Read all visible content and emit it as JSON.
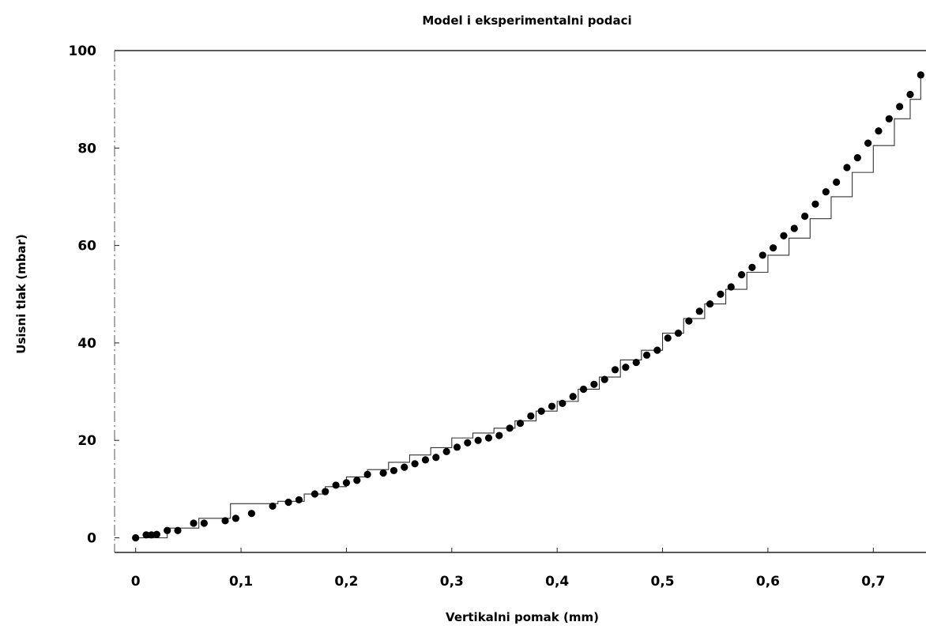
{
  "chart_data": {
    "type": "scatter",
    "title": "Model i eksperimentalni podaci",
    "xlabel": "Vertikalni pomak (mm)",
    "ylabel": "Usisni tlak (mbar)",
    "xlim": [
      -0.02,
      0.75
    ],
    "ylim": [
      -3,
      100
    ],
    "x_ticks": [
      {
        "value": 0,
        "label": "0"
      },
      {
        "value": 0.1,
        "label": "0,1"
      },
      {
        "value": 0.2,
        "label": "0,2"
      },
      {
        "value": 0.3,
        "label": "0,3"
      },
      {
        "value": 0.4,
        "label": "0,4"
      },
      {
        "value": 0.5,
        "label": "0,5"
      },
      {
        "value": 0.6,
        "label": "0,6"
      },
      {
        "value": 0.7,
        "label": "0,7"
      }
    ],
    "y_ticks": [
      {
        "value": 0,
        "label": "0"
      },
      {
        "value": 20,
        "label": "20"
      },
      {
        "value": 40,
        "label": "40"
      },
      {
        "value": 60,
        "label": "60"
      },
      {
        "value": 80,
        "label": "80"
      },
      {
        "value": 100,
        "label": "100"
      }
    ],
    "grid": false,
    "series": [
      {
        "marker": "circle",
        "x": [
          0.0,
          0.01,
          0.015,
          0.02,
          0.03,
          0.04,
          0.055,
          0.065,
          0.085,
          0.095,
          0.11,
          0.13,
          0.145,
          0.155,
          0.17,
          0.18,
          0.19,
          0.2,
          0.21,
          0.22,
          0.235,
          0.245,
          0.255,
          0.265,
          0.275,
          0.285,
          0.295,
          0.305,
          0.315,
          0.325,
          0.335,
          0.345,
          0.355,
          0.365,
          0.375,
          0.385,
          0.395,
          0.405,
          0.415,
          0.425,
          0.435,
          0.445,
          0.455,
          0.465,
          0.475,
          0.485,
          0.495,
          0.505,
          0.515,
          0.525,
          0.535,
          0.545,
          0.555,
          0.565,
          0.575,
          0.585,
          0.595,
          0.605,
          0.615,
          0.625,
          0.635,
          0.645,
          0.655,
          0.665,
          0.675,
          0.685,
          0.695,
          0.705,
          0.715,
          0.725,
          0.735,
          0.745
        ],
        "y": [
          0.0,
          0.6,
          0.6,
          0.7,
          1.5,
          1.5,
          3.0,
          3.0,
          3.5,
          4.0,
          5.0,
          6.5,
          7.3,
          7.8,
          9.0,
          9.5,
          10.8,
          11.3,
          11.8,
          13.0,
          13.3,
          13.8,
          14.5,
          15.2,
          16.0,
          16.5,
          17.7,
          18.6,
          19.5,
          20.0,
          20.5,
          21.0,
          22.5,
          23.5,
          25.0,
          26.0,
          27.0,
          27.6,
          29.0,
          30.5,
          31.5,
          32.5,
          34.5,
          35.0,
          36.0,
          37.5,
          38.5,
          41.0,
          42.0,
          44.5,
          46.5,
          48.0,
          50.0,
          51.5,
          54.0,
          55.5,
          58.0,
          59.5,
          62.0,
          63.5,
          66.0,
          68.5,
          71.0,
          73.0,
          76.0,
          78.0,
          81.0,
          83.5,
          86.0,
          88.5,
          91.0,
          95.0
        ]
      },
      {
        "line": "step",
        "x": [
          0.0,
          0.03,
          0.06,
          0.09,
          0.135,
          0.16,
          0.18,
          0.2,
          0.22,
          0.24,
          0.26,
          0.28,
          0.3,
          0.32,
          0.34,
          0.36,
          0.38,
          0.4,
          0.42,
          0.44,
          0.46,
          0.48,
          0.5,
          0.52,
          0.54,
          0.56,
          0.58,
          0.6,
          0.62,
          0.64,
          0.66,
          0.68,
          0.7,
          0.72,
          0.735,
          0.745
        ],
        "y": [
          0.0,
          2.0,
          4.0,
          7.0,
          7.5,
          9.0,
          10.5,
          12.5,
          14.0,
          15.5,
          17.0,
          18.5,
          20.5,
          21.5,
          22.5,
          24.0,
          26.0,
          28.0,
          30.5,
          33.0,
          36.5,
          38.5,
          42.0,
          45.0,
          48.0,
          51.0,
          54.5,
          58.0,
          61.5,
          65.5,
          70.0,
          75.0,
          80.5,
          86.0,
          90.0,
          95.5
        ]
      }
    ]
  }
}
